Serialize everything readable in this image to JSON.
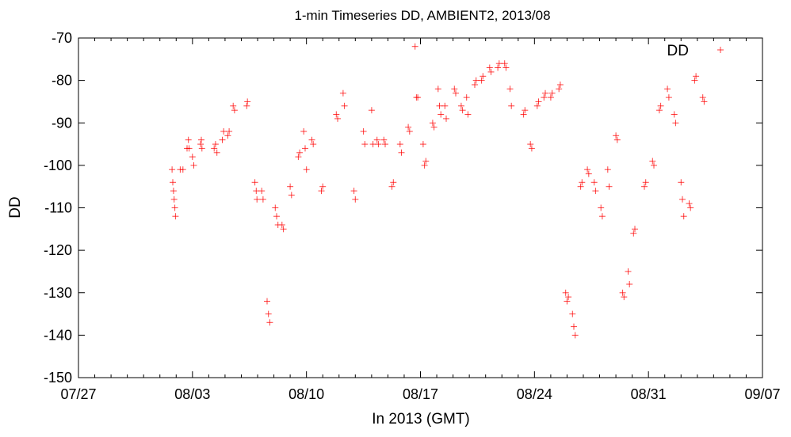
{
  "chart_data": {
    "type": "scatter",
    "title": "1-min Timeseries DD, AMBIENT2, 2013/08",
    "xlabel": "In 2013 (GMT)",
    "ylabel": "DD",
    "xlim": [
      "2013-07-27",
      "2013-09-07"
    ],
    "ylim": [
      -150,
      -70
    ],
    "x_ticks": [
      "07/27",
      "08/03",
      "08/10",
      "08/17",
      "08/24",
      "08/31",
      "09/07"
    ],
    "y_ticks": [
      -70,
      -80,
      -90,
      -100,
      -110,
      -120,
      -130,
      -140,
      -150
    ],
    "grid": false,
    "legend": {
      "position": "top-right",
      "entries": [
        "DD"
      ]
    },
    "marker": "+",
    "color": "#ff0000",
    "series": [
      {
        "name": "DD",
        "points": [
          [
            "2013-08-01T18:00",
            -101
          ],
          [
            "2013-08-01T19:00",
            -104
          ],
          [
            "2013-08-01T20:00",
            -106
          ],
          [
            "2013-08-01T21:00",
            -108
          ],
          [
            "2013-08-01T22:00",
            -110
          ],
          [
            "2013-08-01T23:00",
            -112
          ],
          [
            "2013-08-02T06:00",
            -101
          ],
          [
            "2013-08-02T10:00",
            -101
          ],
          [
            "2013-08-02T16:00",
            -96
          ],
          [
            "2013-08-02T18:00",
            -94
          ],
          [
            "2013-08-02T19:00",
            -96
          ],
          [
            "2013-08-03T00:00",
            -98
          ],
          [
            "2013-08-03T02:00",
            -100
          ],
          [
            "2013-08-03T12:00",
            -95
          ],
          [
            "2013-08-03T13:00",
            -94
          ],
          [
            "2013-08-03T14:00",
            -96
          ],
          [
            "2013-08-04T08:00",
            -96
          ],
          [
            "2013-08-04T10:00",
            -95
          ],
          [
            "2013-08-04T12:00",
            -97
          ],
          [
            "2013-08-04T20:00",
            -94
          ],
          [
            "2013-08-04T22:00",
            -92
          ],
          [
            "2013-08-05T04:00",
            -93
          ],
          [
            "2013-08-05T06:00",
            -92
          ],
          [
            "2013-08-05T12:00",
            -86
          ],
          [
            "2013-08-05T14:00",
            -87
          ],
          [
            "2013-08-06T08:00",
            -86
          ],
          [
            "2013-08-06T09:00",
            -85
          ],
          [
            "2013-08-06T20:00",
            -104
          ],
          [
            "2013-08-06T22:00",
            -106
          ],
          [
            "2013-08-06T23:00",
            -108
          ],
          [
            "2013-08-07T06:00",
            -106
          ],
          [
            "2013-08-07T08:00",
            -108
          ],
          [
            "2013-08-07T14:00",
            -132
          ],
          [
            "2013-08-07T16:00",
            -135
          ],
          [
            "2013-08-07T18:00",
            -137
          ],
          [
            "2013-08-08T02:00",
            -110
          ],
          [
            "2013-08-08T04:00",
            -112
          ],
          [
            "2013-08-08T06:00",
            -114
          ],
          [
            "2013-08-08T12:00",
            -114
          ],
          [
            "2013-08-08T14:00",
            -115
          ],
          [
            "2013-08-09T00:00",
            -105
          ],
          [
            "2013-08-09T02:00",
            -107
          ],
          [
            "2013-08-09T12:00",
            -98
          ],
          [
            "2013-08-09T14:00",
            -97
          ],
          [
            "2013-08-09T20:00",
            -92
          ],
          [
            "2013-08-09T22:00",
            -96
          ],
          [
            "2013-08-10T00:00",
            -101
          ],
          [
            "2013-08-10T08:00",
            -94
          ],
          [
            "2013-08-10T10:00",
            -95
          ],
          [
            "2013-08-10T22:00",
            -106
          ],
          [
            "2013-08-11T00:00",
            -105
          ],
          [
            "2013-08-11T20:00",
            -88
          ],
          [
            "2013-08-11T22:00",
            -89
          ],
          [
            "2013-08-12T06:00",
            -83
          ],
          [
            "2013-08-12T08:00",
            -86
          ],
          [
            "2013-08-12T22:00",
            -106
          ],
          [
            "2013-08-13T00:00",
            -108
          ],
          [
            "2013-08-13T12:00",
            -92
          ],
          [
            "2013-08-13T14:00",
            -95
          ],
          [
            "2013-08-14T00:00",
            -87
          ],
          [
            "2013-08-14T02:00",
            -95
          ],
          [
            "2013-08-14T08:00",
            -94
          ],
          [
            "2013-08-14T10:00",
            -95
          ],
          [
            "2013-08-14T18:00",
            -94
          ],
          [
            "2013-08-14T20:00",
            -95
          ],
          [
            "2013-08-15T06:00",
            -105
          ],
          [
            "2013-08-15T08:00",
            -104
          ],
          [
            "2013-08-15T18:00",
            -95
          ],
          [
            "2013-08-15T20:00",
            -97
          ],
          [
            "2013-08-16T06:00",
            -91
          ],
          [
            "2013-08-16T08:00",
            -92
          ],
          [
            "2013-08-16T16:00",
            -72
          ],
          [
            "2013-08-16T18:00",
            -84
          ],
          [
            "2013-08-16T20:00",
            -84
          ],
          [
            "2013-08-17T04:00",
            -95
          ],
          [
            "2013-08-17T06:00",
            -100
          ],
          [
            "2013-08-17T08:00",
            -99
          ],
          [
            "2013-08-17T18:00",
            -90
          ],
          [
            "2013-08-17T20:00",
            -91
          ],
          [
            "2013-08-18T02:00",
            -82
          ],
          [
            "2013-08-18T04:00",
            -86
          ],
          [
            "2013-08-18T06:00",
            -88
          ],
          [
            "2013-08-18T12:00",
            -86
          ],
          [
            "2013-08-18T14:00",
            -89
          ],
          [
            "2013-08-19T02:00",
            -82
          ],
          [
            "2013-08-19T04:00",
            -83
          ],
          [
            "2013-08-19T12:00",
            -86
          ],
          [
            "2013-08-19T14:00",
            -87
          ],
          [
            "2013-08-19T20:00",
            -84
          ],
          [
            "2013-08-19T22:00",
            -88
          ],
          [
            "2013-08-20T08:00",
            -81
          ],
          [
            "2013-08-20T10:00",
            -80
          ],
          [
            "2013-08-20T18:00",
            -80
          ],
          [
            "2013-08-20T20:00",
            -79
          ],
          [
            "2013-08-21T06:00",
            -77
          ],
          [
            "2013-08-21T08:00",
            -78
          ],
          [
            "2013-08-21T18:00",
            -77
          ],
          [
            "2013-08-21T20:00",
            -76
          ],
          [
            "2013-08-22T04:00",
            -76
          ],
          [
            "2013-08-22T06:00",
            -77
          ],
          [
            "2013-08-22T12:00",
            -82
          ],
          [
            "2013-08-22T14:00",
            -86
          ],
          [
            "2013-08-23T08:00",
            -88
          ],
          [
            "2013-08-23T10:00",
            -87
          ],
          [
            "2013-08-23T18:00",
            -95
          ],
          [
            "2013-08-23T20:00",
            -96
          ],
          [
            "2013-08-24T04:00",
            -86
          ],
          [
            "2013-08-24T06:00",
            -85
          ],
          [
            "2013-08-24T14:00",
            -84
          ],
          [
            "2013-08-24T16:00",
            -83
          ],
          [
            "2013-08-25T00:00",
            -84
          ],
          [
            "2013-08-25T02:00",
            -83
          ],
          [
            "2013-08-25T12:00",
            -82
          ],
          [
            "2013-08-25T14:00",
            -81
          ],
          [
            "2013-08-25T22:00",
            -130
          ],
          [
            "2013-08-26T00:00",
            -132
          ],
          [
            "2013-08-26T02:00",
            -131
          ],
          [
            "2013-08-26T08:00",
            -135
          ],
          [
            "2013-08-26T10:00",
            -138
          ],
          [
            "2013-08-26T12:00",
            -140
          ],
          [
            "2013-08-26T20:00",
            -105
          ],
          [
            "2013-08-26T22:00",
            -104
          ],
          [
            "2013-08-27T06:00",
            -101
          ],
          [
            "2013-08-27T08:00",
            -102
          ],
          [
            "2013-08-27T16:00",
            -104
          ],
          [
            "2013-08-27T18:00",
            -106
          ],
          [
            "2013-08-28T02:00",
            -110
          ],
          [
            "2013-08-28T04:00",
            -112
          ],
          [
            "2013-08-28T12:00",
            -101
          ],
          [
            "2013-08-28T14:00",
            -105
          ],
          [
            "2013-08-29T00:00",
            -93
          ],
          [
            "2013-08-29T02:00",
            -94
          ],
          [
            "2013-08-29T10:00",
            -130
          ],
          [
            "2013-08-29T12:00",
            -131
          ],
          [
            "2013-08-29T18:00",
            -125
          ],
          [
            "2013-08-29T20:00",
            -128
          ],
          [
            "2013-08-30T02:00",
            -116
          ],
          [
            "2013-08-30T04:00",
            -115
          ],
          [
            "2013-08-30T18:00",
            -105
          ],
          [
            "2013-08-30T20:00",
            -104
          ],
          [
            "2013-08-31T06:00",
            -99
          ],
          [
            "2013-08-31T08:00",
            -100
          ],
          [
            "2013-08-31T16:00",
            -87
          ],
          [
            "2013-08-31T18:00",
            -86
          ],
          [
            "2013-09-01T04:00",
            -82
          ],
          [
            "2013-09-01T06:00",
            -84
          ],
          [
            "2013-09-01T14:00",
            -88
          ],
          [
            "2013-09-01T16:00",
            -90
          ],
          [
            "2013-09-02T00:00",
            -104
          ],
          [
            "2013-09-02T02:00",
            -108
          ],
          [
            "2013-09-02T04:00",
            -112
          ],
          [
            "2013-09-02T12:00",
            -109
          ],
          [
            "2013-09-02T14:00",
            -110
          ],
          [
            "2013-09-02T20:00",
            -80
          ],
          [
            "2013-09-02T22:00",
            -79
          ],
          [
            "2013-09-03T08:00",
            -84
          ],
          [
            "2013-09-03T10:00",
            -85
          ]
        ]
      }
    ]
  }
}
